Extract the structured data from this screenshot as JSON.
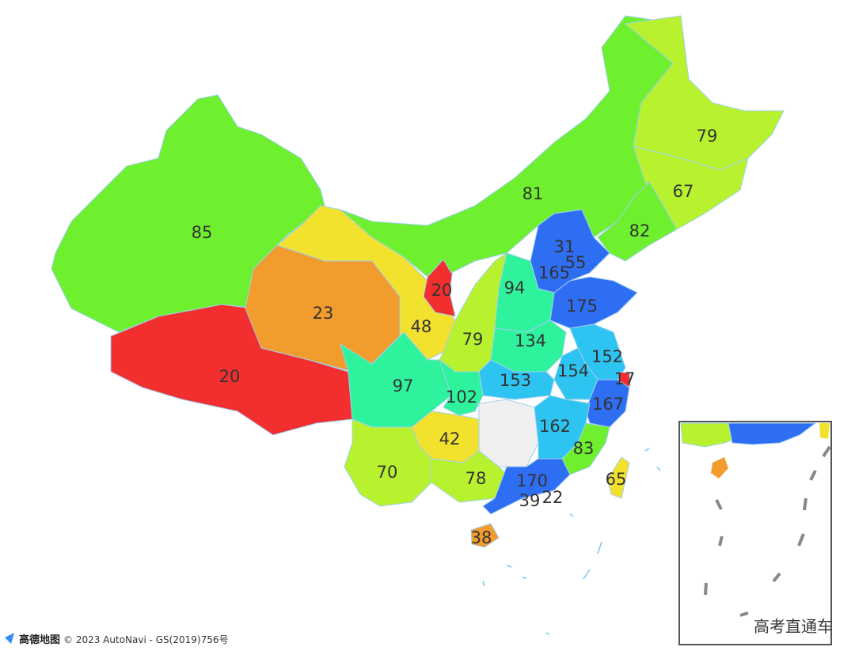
{
  "map": {
    "regions": [
      {
        "value": 85,
        "color": "#6ef02e"
      },
      {
        "value": 20,
        "color": "#f22e2e"
      },
      {
        "value": 23,
        "color": "#f29c2e"
      },
      {
        "value": 48,
        "color": "#f2e22e"
      },
      {
        "value": 20,
        "color": "#f22e2e"
      },
      {
        "value": 81,
        "color": "#6ef02e"
      },
      {
        "value": 79,
        "color": "#b8f22e"
      },
      {
        "value": 67,
        "color": "#b8f22e"
      },
      {
        "value": 82,
        "color": "#6ef02e"
      },
      {
        "value": 31,
        "color": "#f29c2e"
      },
      {
        "value": 55,
        "color": "#f2e22e"
      },
      {
        "value": 165,
        "color": "#2e6ef2"
      },
      {
        "value": 175,
        "color": "#2e6ef2"
      },
      {
        "value": 94,
        "color": "#2ef29c"
      },
      {
        "value": 79,
        "color": "#b8f22e"
      },
      {
        "value": 134,
        "color": "#2ef29c"
      },
      {
        "value": 152,
        "color": "#2ec4f2"
      },
      {
        "value": 17,
        "color": "#f22e2e"
      },
      {
        "value": 154,
        "color": "#2ec4f2"
      },
      {
        "value": 153,
        "color": "#2ec4f2"
      },
      {
        "value": 167,
        "color": "#2e6ef2"
      },
      {
        "value": 97,
        "color": "#2ef29c"
      },
      {
        "value": 102,
        "color": "#2ef29c"
      },
      {
        "value": 42,
        "color": "#f2e22e"
      },
      {
        "color": "#f0f0f0"
      },
      {
        "value": 162,
        "color": "#2ec4f2"
      },
      {
        "value": 83,
        "color": "#6ef02e"
      },
      {
        "value": 65,
        "color": "#f2e22e"
      },
      {
        "value": 70,
        "color": "#b8f22e"
      },
      {
        "value": 78,
        "color": "#b8f22e"
      },
      {
        "value": 170,
        "color": "#2e6ef2"
      },
      {
        "value": 22
      },
      {
        "value": 39
      },
      {
        "value": 38,
        "color": "#f29c2e"
      }
    ],
    "logo": "高德地图",
    "attribution": "© 2023 AutoNavi - GS(2019)756号",
    "watermark": "高考直通车"
  }
}
